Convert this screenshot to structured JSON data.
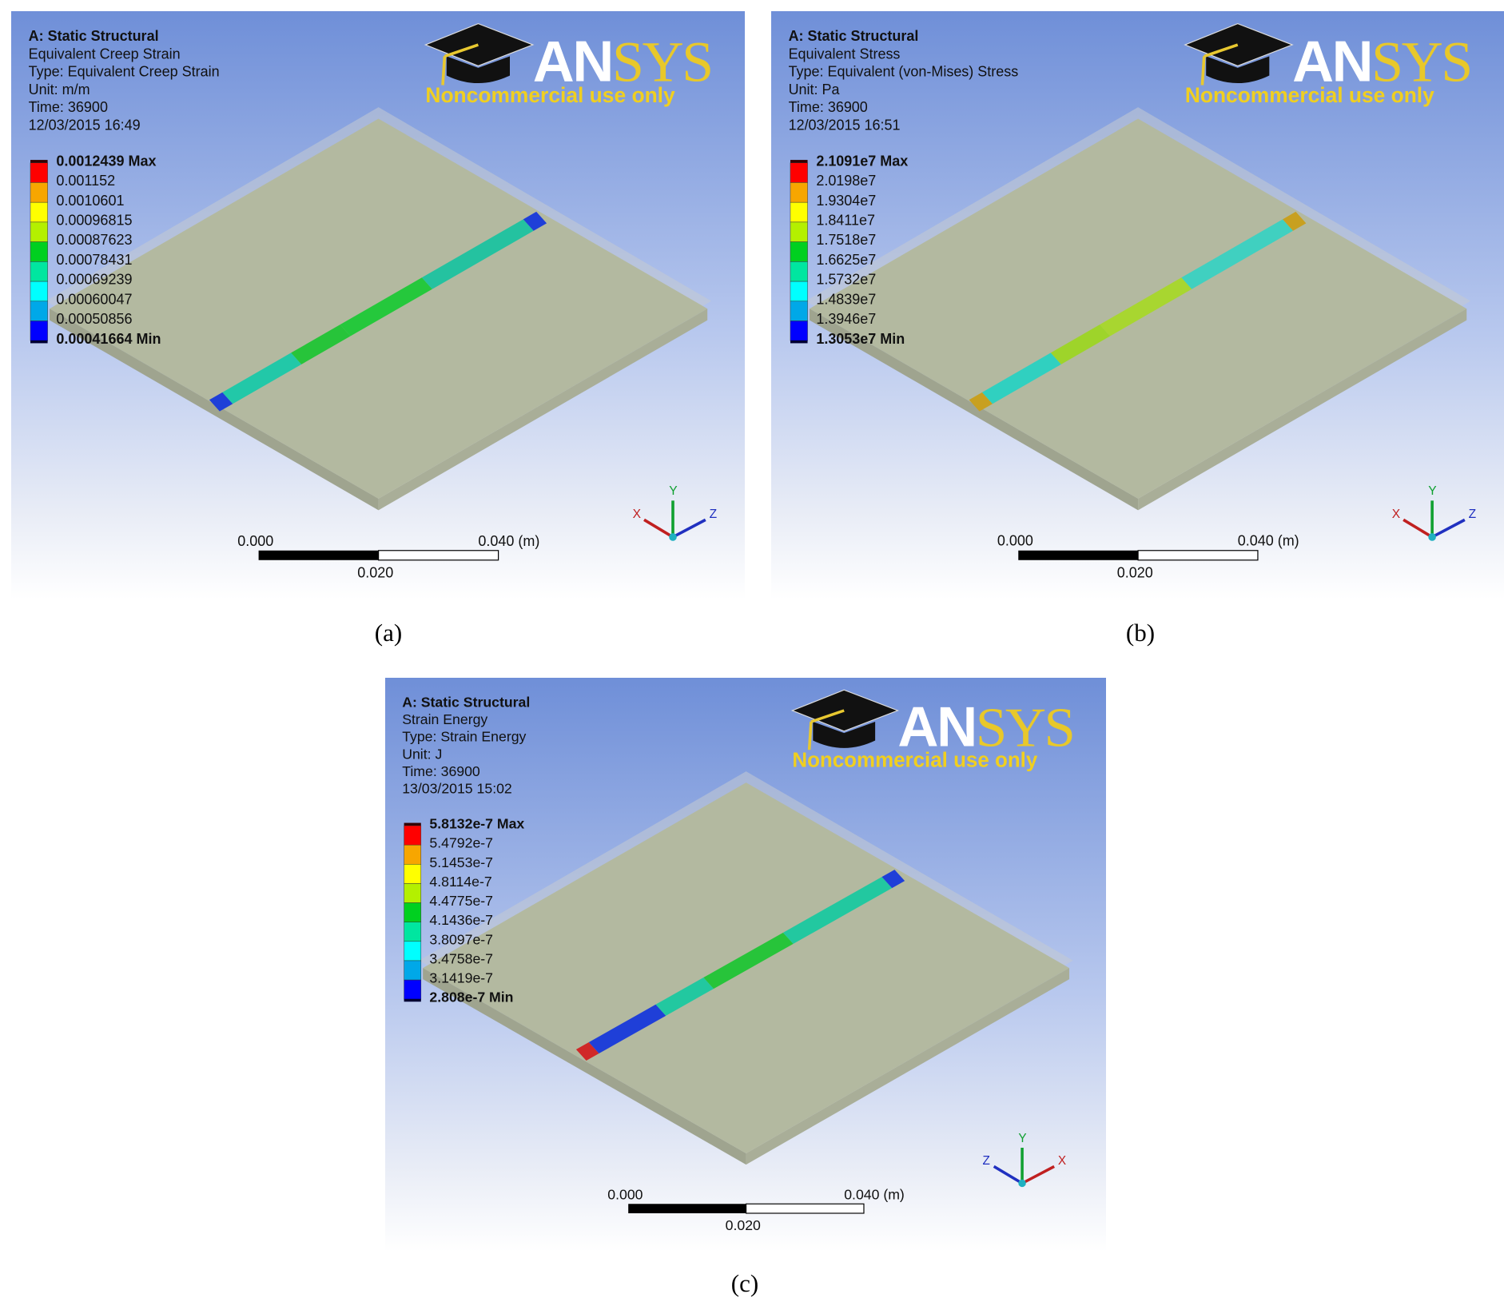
{
  "figure": {
    "panels": [
      {
        "id": "a",
        "caption": "(a)",
        "header": {
          "analysis": "A: Static Structural",
          "result": "Equivalent Creep Strain",
          "type": "Type: Equivalent Creep Strain",
          "unit": "Unit: m/m",
          "time": "Time: 36900",
          "date": "12/03/2015 16:49"
        },
        "legend": [
          "0.0012439 Max",
          "0.001152",
          "0.0010601",
          "0.00096815",
          "0.00087623",
          "0.00078431",
          "0.00069239",
          "0.00060047",
          "0.00050856",
          "0.00041664 Min"
        ],
        "strip_colors": [
          "#1f3fd8",
          "#22c8a8",
          "#27c43a",
          "#25c83c",
          "#24c2a0",
          "#1f3fd8"
        ],
        "triad": {
          "left": "X",
          "up": "Y",
          "right": "Z"
        },
        "scale": {
          "start": "0.000",
          "mid": "0.020",
          "end": "0.040 (m)"
        }
      },
      {
        "id": "b",
        "caption": "(b)",
        "header": {
          "analysis": "A: Static Structural",
          "result": "Equivalent Stress",
          "type": "Type: Equivalent (von-Mises) Stress",
          "unit": "Unit: Pa",
          "time": "Time: 36900",
          "date": "12/03/2015 16:51"
        },
        "legend": [
          "2.1091e7 Max",
          "2.0198e7",
          "1.9304e7",
          "1.8411e7",
          "1.7518e7",
          "1.6625e7",
          "1.5732e7",
          "1.4839e7",
          "1.3946e7",
          "1.3053e7 Min"
        ],
        "strip_colors": [
          "#c8a020",
          "#30d0c0",
          "#9ed42a",
          "#a8d630",
          "#40d0c0",
          "#c8a020"
        ],
        "triad": {
          "left": "X",
          "up": "Y",
          "right": "Z"
        },
        "scale": {
          "start": "0.000",
          "mid": "0.020",
          "end": "0.040 (m)"
        }
      },
      {
        "id": "c",
        "caption": "(c)",
        "header": {
          "analysis": "A: Static Structural",
          "result": "Strain Energy",
          "type": "Type: Strain Energy",
          "unit": "Unit: J",
          "time": "Time: 36900",
          "date": "13/03/2015 15:02"
        },
        "legend": [
          "5.8132e-7 Max",
          "5.4792e-7",
          "5.1453e-7",
          "4.8114e-7",
          "4.4775e-7",
          "4.1436e-7",
          "3.8097e-7",
          "3.4758e-7",
          "3.1419e-7",
          "2.808e-7 Min"
        ],
        "strip_colors": [
          "#d02828",
          "#1f3fd8",
          "#22c8a0",
          "#27c43a",
          "#22c8a0",
          "#1f3fd8"
        ],
        "triad": {
          "left": "Z",
          "up": "Y",
          "right": "X"
        },
        "scale": {
          "start": "0.000",
          "mid": "0.020",
          "end": "0.040 (m)"
        }
      }
    ],
    "logo": {
      "brand": "ANSYS",
      "tagline": "Noncommercial use only"
    },
    "legend_colors": [
      "#ff0000",
      "#f7a600",
      "#ffff00",
      "#b4f000",
      "#00d020",
      "#00e6a0",
      "#00ffff",
      "#00a8e8",
      "#0000ff"
    ],
    "background_top": "#6f8fd8",
    "plate_color": "#b3b9a0"
  }
}
